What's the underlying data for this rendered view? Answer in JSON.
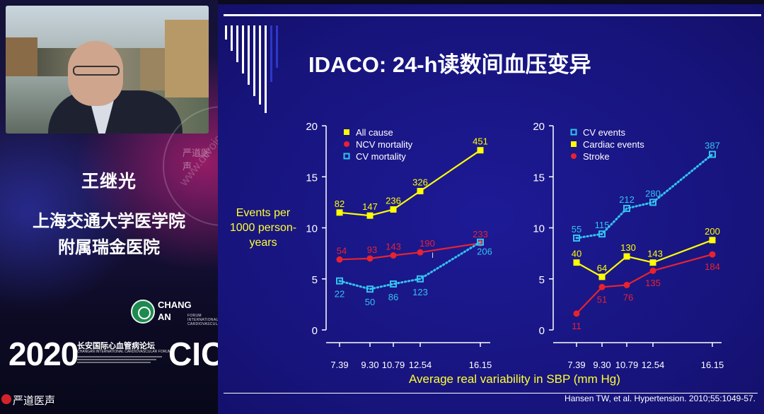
{
  "speaker": {
    "name": "王继光",
    "affiliation_line1": "上海交通大学医学院",
    "affiliation_line2": "附属瑞金医院"
  },
  "branding": {
    "forum_logo_line1": "CHANG",
    "forum_logo_line2": "AN",
    "forum_logo_side": "FORUM",
    "forum_logo_small": "INTERNATIONAL CARDIOVASCULAR",
    "year": "2020",
    "forum_name_cn": "长安国际心血管病论坛",
    "forum_name_en": "CHANGAN INTERNATIONAL CARDIOVASCULAR FORUM",
    "cic": "CIC",
    "watermark_text": "严道医声",
    "watermark_url": "www.drvoice.cn",
    "bottom_brand": "严道医声",
    "brand_color": "#d2232a"
  },
  "slide": {
    "title": "IDACO: 24-h读数间血压变异",
    "y_axis_label": "Events per 1000 person-years",
    "y_axis_label_lines": [
      "Events per",
      "1000 person-",
      "years"
    ],
    "x_axis_label": "Average real variability in SBP (mm Hg)",
    "citation": "Hansen TW, et al. Hypertension. 2010;55:1049-57.",
    "cursor_glyph": "I"
  },
  "chart_data": [
    {
      "type": "line",
      "panel": "left",
      "x": [
        7.39,
        9.3,
        10.79,
        12.54,
        16.15
      ],
      "x_tick_labels": [
        "7.39",
        "9.30",
        "10.79",
        "12.54",
        "16.15"
      ],
      "ylim": [
        0,
        20
      ],
      "y_ticks": [
        0,
        5,
        10,
        15,
        20
      ],
      "legend_position": "top-left",
      "series": [
        {
          "name": "All cause",
          "values": [
            11.5,
            11.2,
            11.8,
            13.6,
            17.6
          ],
          "labels": [
            "82",
            "147",
            "236",
            "326",
            "451"
          ],
          "color": "#ffff00",
          "marker": "square-filled",
          "line": "solid"
        },
        {
          "name": "NCV mortality",
          "values": [
            6.9,
            7.0,
            7.3,
            7.6,
            8.5
          ],
          "labels": [
            "54",
            "93",
            "143",
            "190",
            "233"
          ],
          "color": "#e8232f",
          "marker": "circle",
          "line": "solid"
        },
        {
          "name": "CV mortality",
          "values": [
            4.8,
            4.0,
            4.5,
            5.0,
            8.6
          ],
          "labels": [
            "22",
            "50",
            "86",
            "123",
            "206"
          ],
          "color": "#33c3f0",
          "marker": "square-open",
          "line": "dotted"
        }
      ]
    },
    {
      "type": "line",
      "panel": "right",
      "x": [
        7.39,
        9.3,
        10.79,
        12.54,
        16.15
      ],
      "x_tick_labels": [
        "7.39",
        "9.30",
        "10.79",
        "12.54",
        "16.15"
      ],
      "ylim": [
        0,
        20
      ],
      "y_ticks": [
        0,
        5,
        10,
        15,
        20
      ],
      "legend_position": "top-left",
      "series": [
        {
          "name": "CV events",
          "values": [
            9.0,
            9.4,
            11.9,
            12.5,
            17.2
          ],
          "labels": [
            "55",
            "115",
            "212",
            "280",
            "387"
          ],
          "color": "#33c3f0",
          "marker": "square-open",
          "line": "dotted"
        },
        {
          "name": "Cardiac events",
          "values": [
            6.6,
            5.2,
            7.2,
            6.6,
            8.8
          ],
          "labels": [
            "40",
            "64",
            "130",
            "143",
            "200"
          ],
          "color": "#ffff00",
          "marker": "square-filled",
          "line": "solid"
        },
        {
          "name": "Stroke",
          "values": [
            1.6,
            4.2,
            4.4,
            5.8,
            7.4
          ],
          "labels": [
            "11",
            "51",
            "76",
            "135",
            "184"
          ],
          "color": "#e8232f",
          "marker": "circle",
          "line": "solid"
        }
      ]
    }
  ]
}
